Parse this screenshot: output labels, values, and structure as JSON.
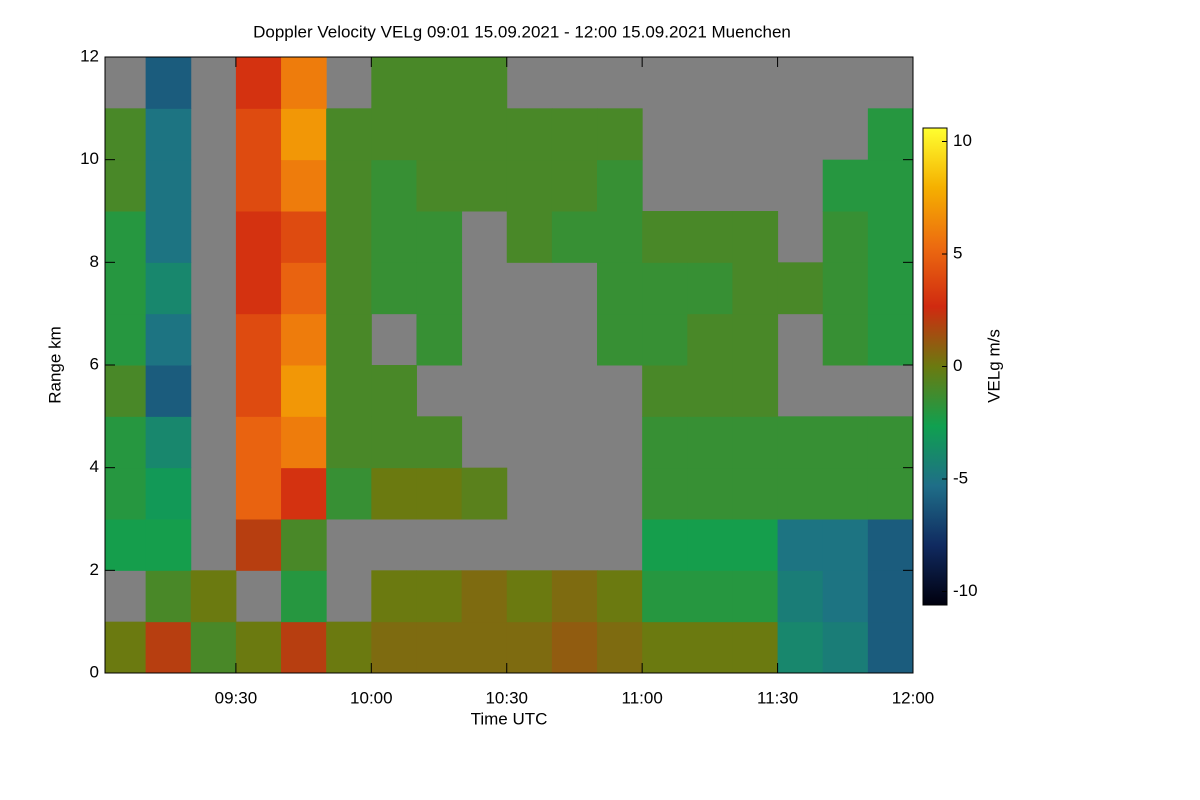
{
  "chart_data": {
    "type": "heatmap",
    "title": "Doppler Velocity VELg   09:01 15.09.2021 - 12:00 15.09.2021 Muenchen",
    "x_label": "Time UTC",
    "y_label": "Range km",
    "colorbar_label": "VELg m/s",
    "x": [
      9.0167,
      9.1667,
      9.3333,
      9.5,
      9.6667,
      9.8333,
      10,
      10.1667,
      10.3333,
      10.5,
      10.6667,
      10.8333,
      11,
      11.1667,
      11.3333,
      11.5,
      11.6667,
      11.8333,
      12
    ],
    "y": [
      0,
      1,
      2,
      3,
      4,
      5,
      6,
      7,
      8,
      9,
      10,
      11,
      12
    ],
    "xlim": [
      9.0167,
      12
    ],
    "xticks": [
      {
        "value": 9.5,
        "label": "09:30"
      },
      {
        "value": 10,
        "label": "10:00"
      },
      {
        "value": 10.5,
        "label": "10:30"
      },
      {
        "value": 11,
        "label": "11:00"
      },
      {
        "value": 11.5,
        "label": "11:30"
      },
      {
        "value": 12,
        "label": "12:00"
      }
    ],
    "ylim": [
      0,
      12
    ],
    "yticks": [
      0,
      2,
      4,
      6,
      8,
      10,
      12
    ],
    "zlim": [
      -10.6,
      10.6
    ],
    "zticks": [
      -10,
      -5,
      0,
      5,
      10
    ],
    "colormap": [
      "#00000e",
      "#102a60",
      "#1f6e88",
      "#10a050",
      "#6b7a10",
      "#d02a10",
      "#ec6a10",
      "#f5b000",
      "#ffff30"
    ],
    "null_color": "#808080",
    "values": [
      [
        0,
        2,
        -1,
        0,
        2,
        0,
        0.5,
        0.5,
        0.5,
        0.5,
        1,
        0.5,
        0,
        0,
        0,
        -4,
        -4.5,
        -6
      ],
      [
        null,
        -1,
        0,
        null,
        -2,
        null,
        0,
        0,
        0.5,
        0,
        0.5,
        0,
        -2,
        -2,
        -2,
        -4.5,
        -5,
        -6
      ],
      [
        -2.5,
        -2.5,
        null,
        2,
        -1,
        null,
        null,
        null,
        null,
        null,
        null,
        null,
        -2.5,
        -2.5,
        -2.5,
        -5,
        -5,
        -6
      ],
      [
        -2,
        -3,
        null,
        5,
        3,
        -1.5,
        0,
        0,
        -0.5,
        null,
        null,
        null,
        -1.5,
        -1.5,
        -1.5,
        -1.5,
        -1.5,
        -1.5
      ],
      [
        -2,
        -4,
        null,
        5,
        6,
        -1,
        -1,
        -1,
        null,
        null,
        null,
        null,
        -1.5,
        -1.5,
        -1.5,
        -1.5,
        -1.5,
        -1.5
      ],
      [
        -1,
        -6,
        null,
        4,
        7,
        -1,
        -1,
        null,
        null,
        null,
        null,
        null,
        -1,
        -1,
        -1,
        null,
        null,
        null
      ],
      [
        -2,
        -5,
        null,
        4,
        6,
        -1,
        null,
        -1.5,
        null,
        null,
        null,
        -1.5,
        -1.5,
        -1,
        -1,
        null,
        -1.5,
        -2
      ],
      [
        -2,
        -4,
        null,
        3,
        5,
        -1,
        -1.5,
        -1.5,
        null,
        null,
        null,
        -1.5,
        -1.5,
        -1.5,
        -1,
        -1,
        -1.5,
        -2
      ],
      [
        -2,
        -5,
        null,
        3,
        4,
        -1,
        -1.5,
        -1.5,
        null,
        -1,
        -1.5,
        -1.5,
        -1,
        -1,
        -1,
        null,
        -1.5,
        -2
      ],
      [
        -1,
        -5,
        null,
        4,
        6,
        -1,
        -1.5,
        -1,
        -1,
        -1,
        -1,
        -1.5,
        null,
        null,
        null,
        null,
        -2,
        -2
      ],
      [
        -1,
        -5,
        null,
        4,
        7,
        -1,
        -1,
        -1,
        -1,
        -1,
        -1,
        -1,
        null,
        null,
        null,
        null,
        null,
        -2
      ],
      [
        null,
        -6,
        null,
        3,
        6,
        null,
        -1,
        -1,
        -1,
        null,
        null,
        null,
        null,
        null,
        null,
        null,
        null,
        null
      ]
    ]
  }
}
